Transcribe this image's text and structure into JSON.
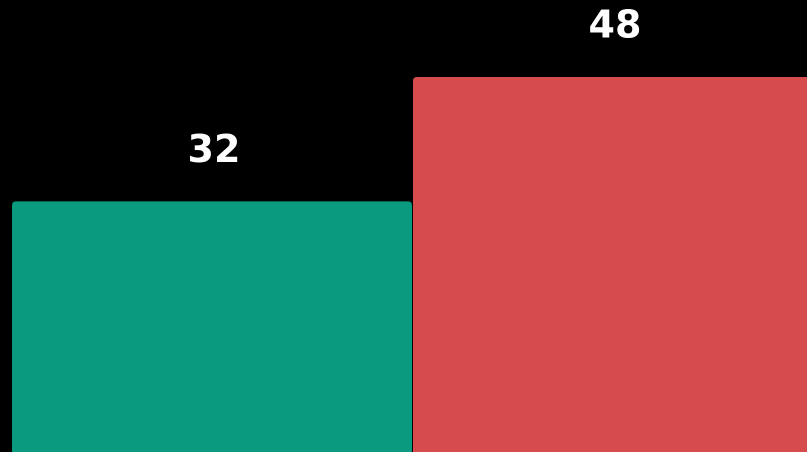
{
  "chart_data": {
    "type": "bar",
    "values": [
      32,
      48
    ],
    "colors": [
      "#0a9a80",
      "#d64b4b"
    ]
  }
}
